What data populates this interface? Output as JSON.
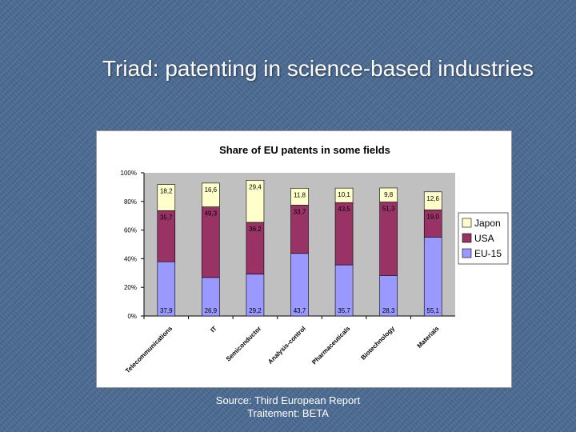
{
  "slide": {
    "title": "Triad: patenting in science-based industries",
    "source_line1": "Source: Third European Report",
    "source_line2": "Traitement: BETA"
  },
  "chart_data": {
    "type": "bar",
    "stacked": true,
    "percent": true,
    "title": "Share of EU patents in some fields",
    "categories": [
      "Telecommunications",
      "IT",
      "Semiconductor",
      "Analysis-control",
      "Pharmaceuticals",
      "Biotechnology",
      "Materials"
    ],
    "series": [
      {
        "name": "EU-15",
        "color": "#9999ff",
        "values": [
          37.9,
          26.9,
          29.2,
          43.7,
          35.7,
          28.3,
          55.1
        ],
        "labels": [
          "37,9",
          "26,9",
          "29,2",
          "43,7",
          "35,7",
          "28,3",
          "55,1"
        ]
      },
      {
        "name": "USA",
        "color": "#993366",
        "values": [
          35.7,
          49.3,
          36.2,
          33.7,
          43.5,
          51.3,
          19.0
        ],
        "labels": [
          "35,7",
          "49,3",
          "36,2",
          "33,7",
          "43,5",
          "51,3",
          "19,0"
        ]
      },
      {
        "name": "Japon",
        "color": "#ffffcc",
        "values": [
          18.2,
          16.6,
          29.4,
          11.8,
          10.1,
          9.8,
          12.6
        ],
        "labels": [
          "18,2",
          "16,6",
          "29,4",
          "11,8",
          "10,1",
          "9,8",
          "12,6"
        ]
      }
    ],
    "yticks": [
      "0%",
      "20%",
      "40%",
      "60%",
      "80%",
      "100%"
    ],
    "ylim": [
      0,
      100
    ],
    "legend": [
      "Japon",
      "USA",
      "EU-15"
    ],
    "legend_position": "right"
  }
}
